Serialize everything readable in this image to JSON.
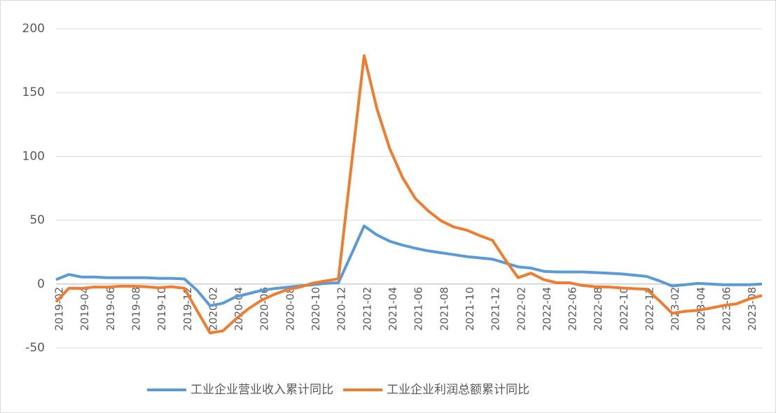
{
  "chart_data": {
    "type": "line",
    "categories": [
      "2019-02",
      null,
      "2019-04",
      null,
      "2019-06",
      null,
      "2019-08",
      null,
      "2019-10",
      null,
      "2019-12",
      null,
      "2020-02",
      null,
      "2020-04",
      null,
      "2020-06",
      null,
      "2020-08",
      null,
      "2020-10",
      null,
      "2020-12",
      null,
      "2021-02",
      null,
      "2021-04",
      null,
      "2021-06",
      null,
      "2021-08",
      null,
      "2021-10",
      null,
      "2021-12",
      null,
      "2022-02",
      null,
      "2022-04",
      null,
      "2022-06",
      null,
      "2022-08",
      null,
      "2022-10",
      null,
      "2022-12",
      null,
      "2023-02",
      null,
      "2023-04",
      null,
      "2023-06",
      null,
      "2023-08",
      null
    ],
    "series": [
      {
        "name": "工业企业营业收入累计同比",
        "color": "#5b9bd5",
        "values": [
          3.5,
          7.5,
          5.5,
          5.5,
          5,
          5,
          5,
          5,
          4.5,
          4.5,
          4,
          -5,
          -17,
          -15,
          -10,
          -7.5,
          -5,
          -3.5,
          -2.5,
          -1.5,
          -0.5,
          0.5,
          1,
          23,
          45.5,
          38.5,
          33.5,
          30.5,
          28,
          26,
          24.5,
          23,
          21.5,
          20.5,
          19.5,
          16.5,
          13.5,
          12.5,
          10,
          9.5,
          9.5,
          9.5,
          9,
          8.5,
          8,
          7,
          6,
          2.5,
          -1.5,
          -0.5,
          0.5,
          0,
          -0.5,
          -0.5,
          -0.5,
          0
        ]
      },
      {
        "name": "工业企业利润总额累计同比",
        "color": "#ed7d31",
        "values": [
          -14,
          -3.3,
          -3.4,
          -2.3,
          -2.4,
          -1.7,
          -1.7,
          -2.1,
          -2.9,
          -2.1,
          -3.3,
          -21,
          -38.3,
          -36.7,
          -27.4,
          -19.3,
          -12.8,
          -8.1,
          -4.4,
          -2.4,
          0.7,
          2.4,
          4.1,
          92,
          178.9,
          137.3,
          106,
          83.4,
          66.9,
          57.3,
          49.5,
          44.7,
          42.2,
          38,
          34.3,
          19,
          5,
          8.5,
          3.5,
          1,
          1,
          -1.1,
          -2.1,
          -2.3,
          -3,
          -3.6,
          -4,
          -13,
          -22.9,
          -21.4,
          -20.6,
          -18.8,
          -16.8,
          -15.5,
          -11.7,
          -9
        ]
      }
    ],
    "ylim": [
      -50,
      200
    ],
    "yticks": [
      -50,
      0,
      50,
      100,
      150,
      200
    ],
    "grid": true,
    "legend": "bottom"
  }
}
